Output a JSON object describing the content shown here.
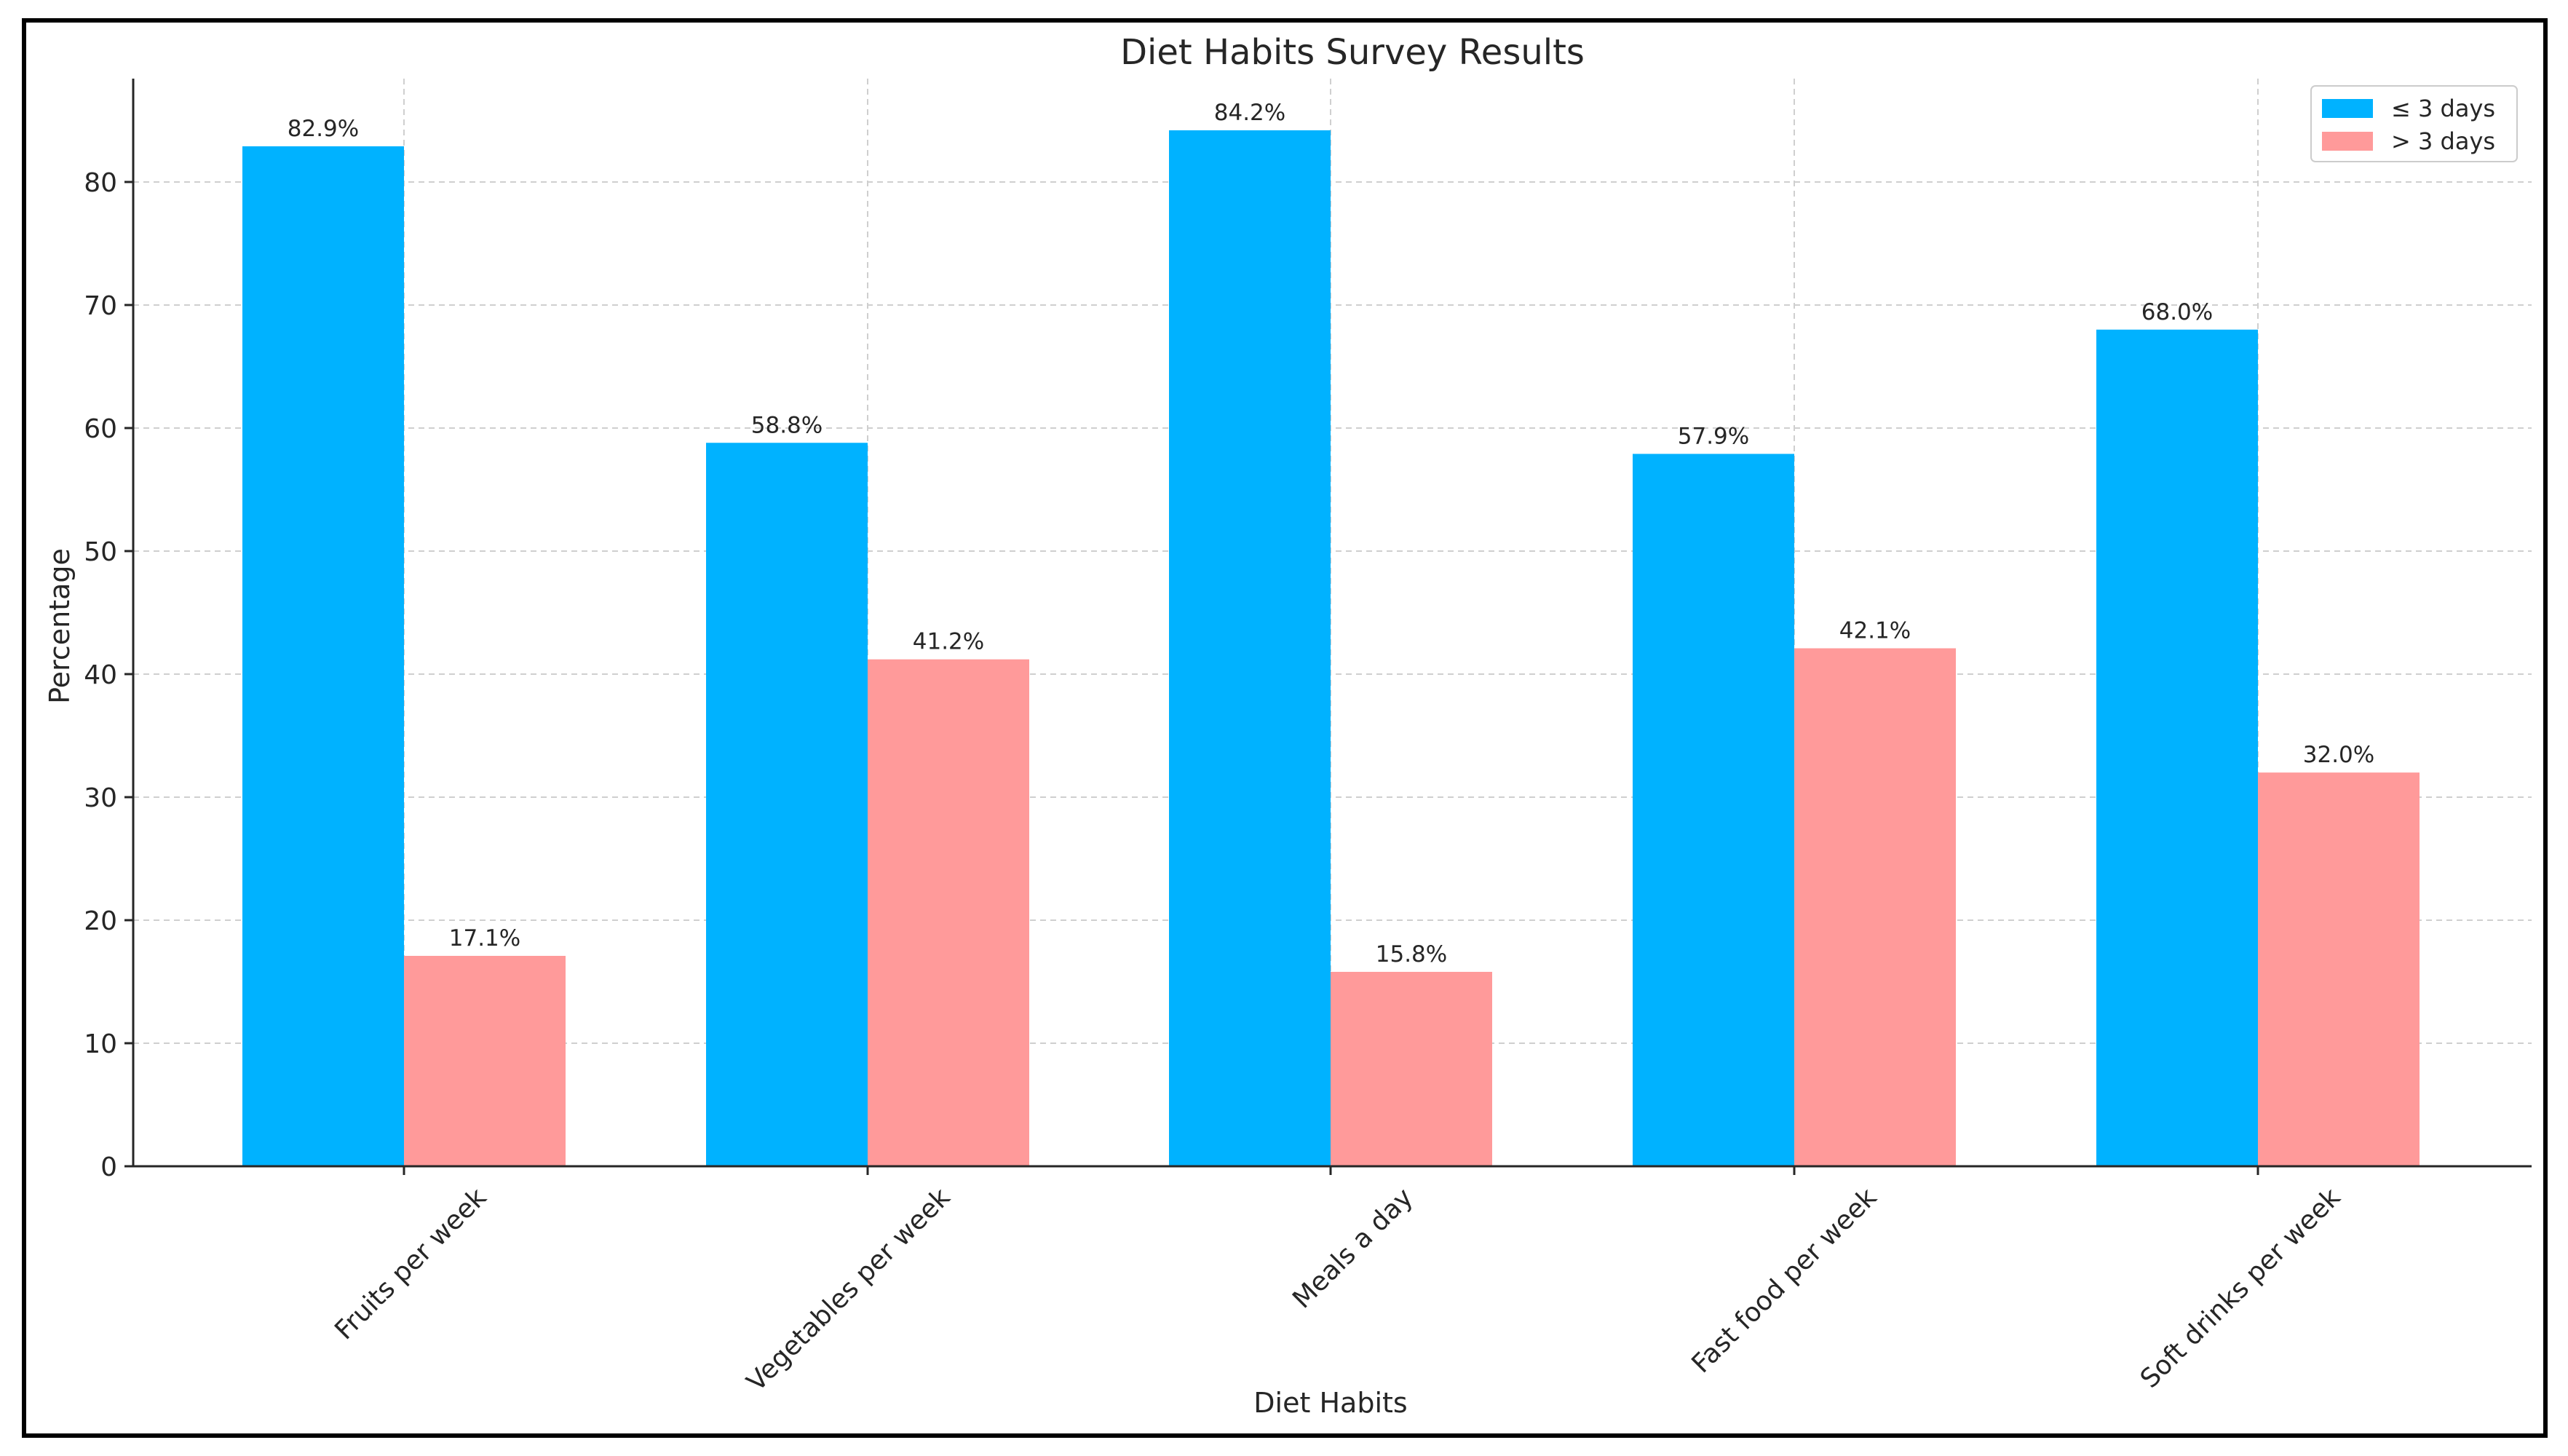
{
  "chart_data": {
    "type": "bar",
    "title": "Diet Habits Survey Results",
    "xlabel": "Diet Habits",
    "ylabel": "Percentage",
    "categories": [
      "Fruits per week",
      "Vegetables per week",
      "Meals a day",
      "Fast food per week",
      "Soft drinks per week"
    ],
    "series": [
      {
        "name": "≤ 3 days",
        "color": "#00b2ff",
        "values": [
          82.9,
          58.8,
          84.2,
          57.9,
          68.0
        ],
        "labels": [
          "82.9%",
          "58.8%",
          "84.2%",
          "57.9%",
          "68.0%"
        ]
      },
      {
        "name": "> 3 days",
        "color": "#ff9a9a",
        "values": [
          17.1,
          41.2,
          15.8,
          42.1,
          32.0
        ],
        "labels": [
          "17.1%",
          "41.2%",
          "15.8%",
          "42.1%",
          "32.0%"
        ]
      }
    ],
    "ylim": [
      0,
      88.4
    ],
    "yticks": [
      0,
      10,
      20,
      30,
      40,
      50,
      60,
      70,
      80
    ],
    "ytick_labels": [
      "0",
      "10",
      "20",
      "30",
      "40",
      "50",
      "60",
      "70",
      "80"
    ],
    "grid": true,
    "legend_position": "top-right"
  }
}
